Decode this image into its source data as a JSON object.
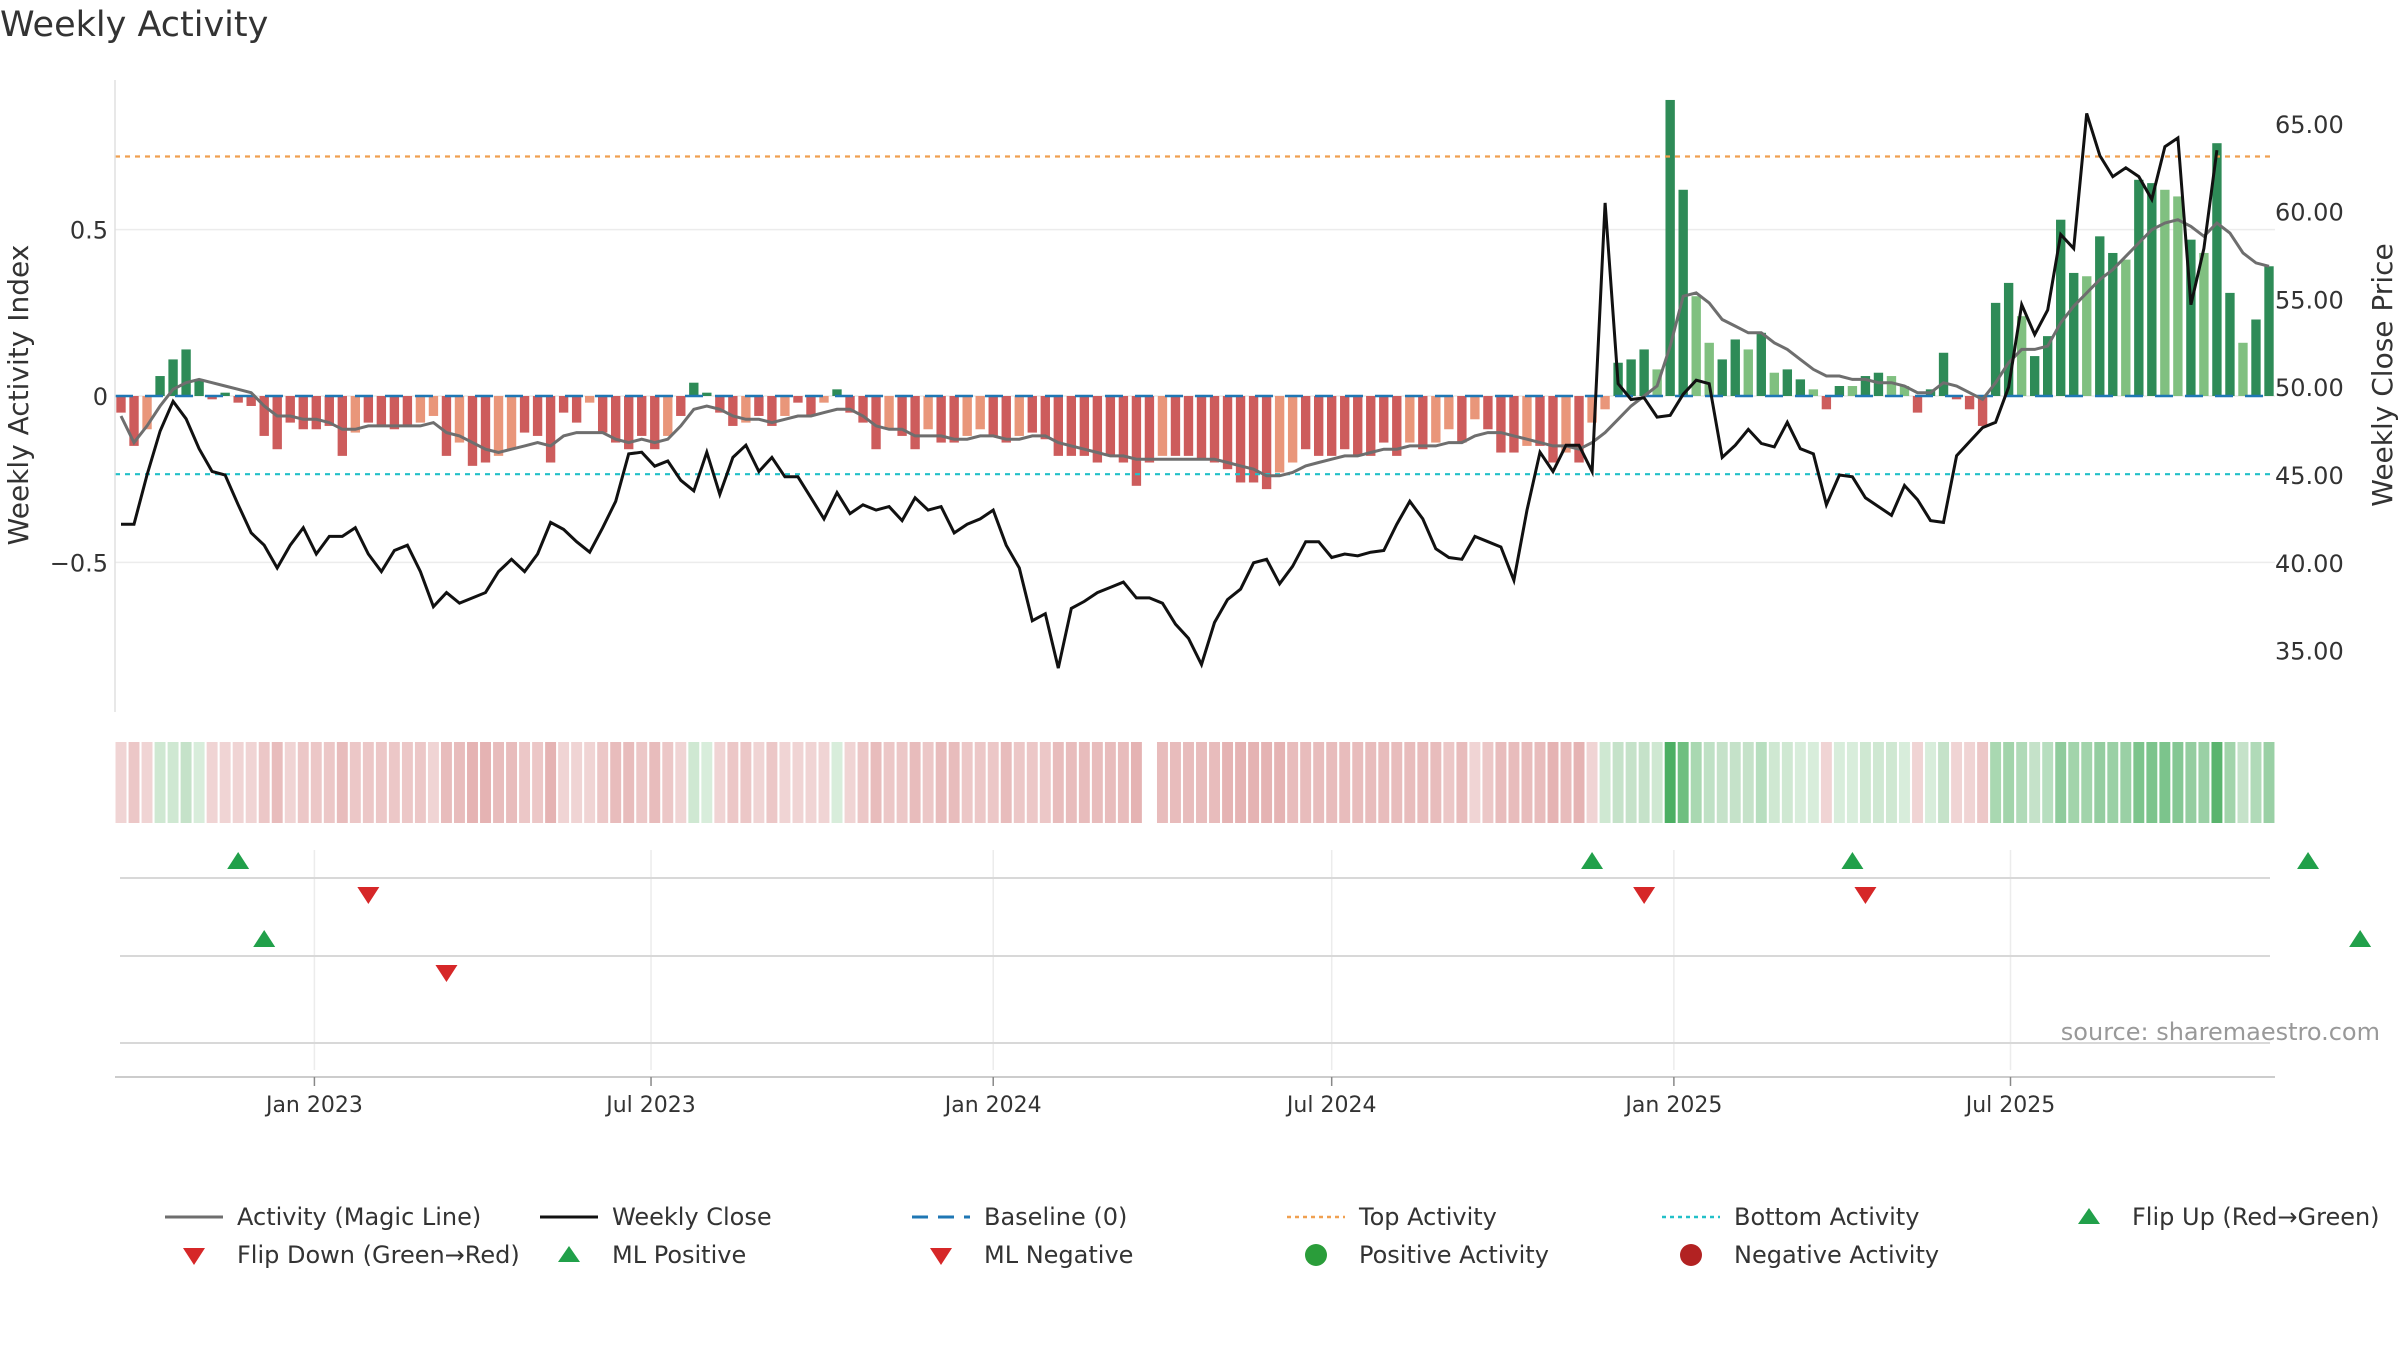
{
  "chart_data": {
    "type": "bar",
    "title": "Weekly Activity",
    "ylabel_left": "Weekly Activity Index",
    "ylabel_right": "Weekly Close Price",
    "source": "source: sharemaestro.com",
    "x_start": "2022-09-19",
    "week_step_days": 7,
    "x_ticks": [
      {
        "date": "2023-01-01",
        "label": "Jan 2023"
      },
      {
        "date": "2023-07-01",
        "label": "Jul 2023"
      },
      {
        "date": "2024-01-01",
        "label": "Jan 2024"
      },
      {
        "date": "2024-07-01",
        "label": "Jul 2024"
      },
      {
        "date": "2025-01-01",
        "label": "Jan 2025"
      },
      {
        "date": "2025-07-01",
        "label": "Jul 2025"
      }
    ],
    "left_ticks": [
      {
        "value": 0.5,
        "label": "0.5"
      },
      {
        "value": 0,
        "label": "0"
      },
      {
        "value": -0.5,
        "label": "−0.5"
      }
    ],
    "right_ticks": [
      {
        "value": 65,
        "label": "65.00"
      },
      {
        "value": 60,
        "label": "60.00"
      },
      {
        "value": 55,
        "label": "55.00"
      },
      {
        "value": 50,
        "label": "50.00"
      },
      {
        "value": 45,
        "label": "45.00"
      },
      {
        "value": 40,
        "label": "40.00"
      },
      {
        "value": 35,
        "label": "35.00"
      }
    ],
    "ylim_left": [
      -0.95,
      0.95
    ],
    "ylim_right": [
      31.5,
      67.5
    ],
    "top_activity": 0.72,
    "bottom_activity": -0.235,
    "baseline": 0,
    "activity": [
      -0.05,
      -0.15,
      -0.1,
      0.06,
      0.11,
      0.14,
      0.05,
      -0.01,
      0.01,
      -0.02,
      -0.03,
      -0.12,
      -0.16,
      -0.08,
      -0.1,
      -0.1,
      -0.09,
      -0.18,
      -0.11,
      -0.08,
      -0.09,
      -0.1,
      -0.09,
      -0.08,
      -0.06,
      -0.18,
      -0.14,
      -0.21,
      -0.2,
      -0.18,
      -0.16,
      -0.11,
      -0.12,
      -0.2,
      -0.05,
      -0.08,
      -0.02,
      -0.11,
      -0.14,
      -0.16,
      -0.12,
      -0.16,
      -0.12,
      -0.06,
      0.04,
      0.01,
      -0.05,
      -0.09,
      -0.08,
      -0.06,
      -0.09,
      -0.06,
      -0.02,
      -0.06,
      -0.02,
      0.02,
      -0.05,
      -0.08,
      -0.16,
      -0.1,
      -0.12,
      -0.16,
      -0.1,
      -0.14,
      -0.14,
      -0.12,
      -0.1,
      -0.12,
      -0.14,
      -0.12,
      -0.11,
      -0.13,
      -0.18,
      -0.18,
      -0.18,
      -0.2,
      -0.18,
      -0.2,
      -0.27,
      -0.2,
      -0.18,
      -0.18,
      -0.18,
      -0.19,
      -0.2,
      -0.22,
      -0.26,
      -0.26,
      -0.28,
      -0.23,
      -0.2,
      -0.16,
      -0.18,
      -0.18,
      -0.16,
      -0.18,
      -0.18,
      -0.14,
      -0.18,
      -0.14,
      -0.16,
      -0.14,
      -0.1,
      -0.14,
      -0.07,
      -0.1,
      -0.17,
      -0.17,
      -0.15,
      -0.15,
      -0.2,
      -0.17,
      -0.2,
      -0.08,
      -0.04,
      0.1,
      0.11,
      0.14,
      0.08,
      0.89,
      0.62,
      0.3,
      0.16,
      0.11,
      0.17,
      0.14,
      0.19,
      0.07,
      0.08,
      0.05,
      0.02,
      -0.04,
      0.03,
      0.03,
      0.06,
      0.07,
      0.06,
      0.03,
      -0.05,
      0.02,
      0.13,
      -0.01,
      -0.04,
      -0.09,
      0.28,
      0.34,
      0.24,
      0.12,
      0.18,
      0.53,
      0.37,
      0.36,
      0.48,
      0.43,
      0.41,
      0.65,
      0.64,
      0.62,
      0.6,
      0.47,
      0.43,
      0.76,
      0.31,
      0.16,
      0.23,
      0.39
    ],
    "magic_line": [
      -0.06,
      -0.14,
      -0.09,
      -0.03,
      0.02,
      0.04,
      0.05,
      0.04,
      0.03,
      0.02,
      0.01,
      -0.03,
      -0.06,
      -0.06,
      -0.07,
      -0.07,
      -0.08,
      -0.1,
      -0.1,
      -0.09,
      -0.09,
      -0.09,
      -0.09,
      -0.09,
      -0.08,
      -0.11,
      -0.12,
      -0.14,
      -0.16,
      -0.17,
      -0.16,
      -0.15,
      -0.14,
      -0.15,
      -0.12,
      -0.11,
      -0.11,
      -0.11,
      -0.13,
      -0.14,
      -0.13,
      -0.14,
      -0.13,
      -0.09,
      -0.04,
      -0.03,
      -0.04,
      -0.06,
      -0.07,
      -0.07,
      -0.08,
      -0.07,
      -0.06,
      -0.06,
      -0.05,
      -0.04,
      -0.04,
      -0.06,
      -0.09,
      -0.1,
      -0.1,
      -0.12,
      -0.12,
      -0.12,
      -0.13,
      -0.13,
      -0.12,
      -0.12,
      -0.13,
      -0.13,
      -0.12,
      -0.12,
      -0.14,
      -0.15,
      -0.16,
      -0.17,
      -0.18,
      -0.18,
      -0.19,
      -0.19,
      -0.19,
      -0.19,
      -0.19,
      -0.19,
      -0.19,
      -0.2,
      -0.21,
      -0.22,
      -0.24,
      -0.24,
      -0.23,
      -0.21,
      -0.2,
      -0.19,
      -0.18,
      -0.18,
      -0.17,
      -0.16,
      -0.16,
      -0.15,
      -0.15,
      -0.15,
      -0.14,
      -0.14,
      -0.12,
      -0.11,
      -0.11,
      -0.12,
      -0.13,
      -0.14,
      -0.15,
      -0.15,
      -0.16,
      -0.14,
      -0.11,
      -0.07,
      -0.03,
      0.0,
      0.03,
      0.15,
      0.3,
      0.31,
      0.28,
      0.23,
      0.21,
      0.19,
      0.19,
      0.16,
      0.14,
      0.11,
      0.08,
      0.06,
      0.06,
      0.05,
      0.05,
      0.04,
      0.04,
      0.03,
      0.01,
      0.01,
      0.04,
      0.03,
      0.01,
      -0.01,
      0.04,
      0.1,
      0.14,
      0.14,
      0.15,
      0.22,
      0.27,
      0.31,
      0.35,
      0.38,
      0.42,
      0.46,
      0.5,
      0.52,
      0.53,
      0.51,
      0.48,
      0.52,
      0.49,
      0.43,
      0.4,
      0.39
    ],
    "weekly_close": [
      42.2,
      42.2,
      45.0,
      47.5,
      49.2,
      48.2,
      46.5,
      45.2,
      45.0,
      43.3,
      41.7,
      41.0,
      39.7,
      41.0,
      42.0,
      40.5,
      41.5,
      41.5,
      42.0,
      40.5,
      39.5,
      40.7,
      41.0,
      39.5,
      37.5,
      38.3,
      37.7,
      38.0,
      38.3,
      39.5,
      40.2,
      39.5,
      40.5,
      42.3,
      41.9,
      41.2,
      40.6,
      42.0,
      43.5,
      46.2,
      46.3,
      45.5,
      45.8,
      44.7,
      44.1,
      46.3,
      43.9,
      46.0,
      46.7,
      45.2,
      46.0,
      44.9,
      44.9,
      43.7,
      42.5,
      44.0,
      42.8,
      43.3,
      43.0,
      43.2,
      42.4,
      43.7,
      43.0,
      43.2,
      41.7,
      42.2,
      42.5,
      43.0,
      41.0,
      39.7,
      36.7,
      37.1,
      34.0,
      37.4,
      37.8,
      38.3,
      38.6,
      38.9,
      38.0,
      38.0,
      37.7,
      36.5,
      35.7,
      34.2,
      36.6,
      37.9,
      38.5,
      40.0,
      40.2,
      38.8,
      39.8,
      41.2,
      41.2,
      40.3,
      40.5,
      40.4,
      40.6,
      40.7,
      42.2,
      43.5,
      42.5,
      40.8,
      40.3,
      40.2,
      41.5,
      41.2,
      40.9,
      39.0,
      43.0,
      46.3,
      45.2,
      46.7,
      46.7,
      45.2,
      60.5,
      50.2,
      49.3,
      49.4,
      48.3,
      48.4,
      49.6,
      50.4,
      50.2,
      46.0,
      46.7,
      47.6,
      46.8,
      46.6,
      48.0,
      46.5,
      46.2,
      43.3,
      45.0,
      44.9,
      43.7,
      43.2,
      42.7,
      44.4,
      43.6,
      42.4,
      42.3,
      46.1,
      46.9,
      47.7,
      48.0,
      50.0,
      54.7,
      53.0,
      54.4,
      58.7,
      57.9,
      65.6,
      63.2,
      62.0,
      62.5,
      62.0,
      60.7,
      63.7,
      64.2,
      54.7,
      57.9,
      63.5
    ],
    "strip_colors": [
      "#f0d4d4",
      "#ecc7c7",
      "#f0d4d4",
      "#cfe8d2",
      "#cfe8d2",
      "#c5e2c9",
      "#d8eddb",
      "#f0d4d4",
      "#f0d4d4",
      "#f0d4d4",
      "#f0d4d4",
      "#ecc7c7",
      "#e8bcbc",
      "#f0d4d4",
      "#ecc7c7",
      "#ecc7c7",
      "#ecc7c7",
      "#e8bcbc",
      "#ecc7c7",
      "#ecc7c7",
      "#ecc7c7",
      "#ecc7c7",
      "#ecc7c7",
      "#ecc7c7",
      "#f0d4d4",
      "#e8bcbc",
      "#e8bcbc",
      "#e5b3b3",
      "#e5b3b3",
      "#e8bcbc",
      "#e8bcbc",
      "#ecc7c7",
      "#ecc7c7",
      "#e5b3b3",
      "#f0d4d4",
      "#f0d4d4",
      "#f0d4d4",
      "#ecc7c7",
      "#e8bcbc",
      "#e8bcbc",
      "#ecc7c7",
      "#e8bcbc",
      "#ecc7c7",
      "#f0d4d4",
      "#cfe8d2",
      "#d8eddb",
      "#f0d4d4",
      "#ecc7c7",
      "#ecc7c7",
      "#f0d4d4",
      "#ecc7c7",
      "#f0d4d4",
      "#f0d4d4",
      "#f0d4d4",
      "#f0d4d4",
      "#d8eddb",
      "#f0d4d4",
      "#ecc7c7",
      "#e8bcbc",
      "#ecc7c7",
      "#ecc7c7",
      "#e8bcbc",
      "#ecc7c7",
      "#e8bcbc",
      "#e8bcbc",
      "#ecc7c7",
      "#ecc7c7",
      "#ecc7c7",
      "#e8bcbc",
      "#ecc7c7",
      "#ecc7c7",
      "#ecc7c7",
      "#e8bcbc",
      "#e8bcbc",
      "#e8bcbc",
      "#e8bcbc",
      "#e8bcbc",
      "#e8bcbc",
      "#e5b3b3",
      "#ffffff",
      "#e8bcbc",
      "#e8bcbc",
      "#e8bcbc",
      "#e8bcbc",
      "#e8bcbc",
      "#e5b3b3",
      "#e5b3b3",
      "#e5b3b3",
      "#e5b3b3",
      "#e5b3b3",
      "#e8bcbc",
      "#e8bcbc",
      "#e8bcbc",
      "#e8bcbc",
      "#e8bcbc",
      "#e8bcbc",
      "#e8bcbc",
      "#e8bcbc",
      "#e8bcbc",
      "#e8bcbc",
      "#e8bcbc",
      "#e8bcbc",
      "#ecc7c7",
      "#e8bcbc",
      "#f0d4d4",
      "#ecc7c7",
      "#e8bcbc",
      "#e8bcbc",
      "#e8bcbc",
      "#e8bcbc",
      "#e5b3b3",
      "#e8bcbc",
      "#e5b3b3",
      "#f0d4d4",
      "#cfe8d2",
      "#c5e2c9",
      "#c5e2c9",
      "#c5e2c9",
      "#cfe8d2",
      "#4caf63",
      "#6fbf80",
      "#a9d8b1",
      "#bfe1c5",
      "#c5e2c9",
      "#b7deb f",
      "#c5e2c9",
      "#b7debf",
      "#cfe8d2",
      "#cfe8d2",
      "#d8eddb",
      "#d8eddb",
      "#f0d4d4",
      "#d8eddb",
      "#d8eddb",
      "#cfe8d2",
      "#cfe8d2",
      "#cfe8d2",
      "#d8eddb",
      "#f0d4d4",
      "#d8eddb",
      "#c5e2c9",
      "#f0d4d4",
      "#f0d4d4",
      "#ecc7c7",
      "#a9d8b1",
      "#a2d4ab",
      "#b0dab8",
      "#c5e2c9",
      "#b7debf",
      "#8fcb9c",
      "#a2d4ab",
      "#a2d4ab",
      "#94cda0",
      "#9ad0a5",
      "#9ad0a5",
      "#7cc48c",
      "#7cc48c",
      "#7cc48c",
      "#84c793",
      "#94cda0",
      "#9ad0a5",
      "#5ab46e",
      "#a2d4ab",
      "#c5e2c9",
      "#b0dab8",
      "#9ad0a5"
    ],
    "row1_up": [
      9,
      113,
      133,
      168,
      201,
      216,
      226
    ],
    "row1_down": [
      19,
      117,
      134,
      199,
      214,
      220
    ],
    "row2_up": [
      11,
      172,
      226
    ],
    "row2_down": [
      25,
      224
    ],
    "legend": [
      {
        "label": "Activity (Magic Line)",
        "kind": "line",
        "color": "#6e6e6e"
      },
      {
        "label": "Weekly Close",
        "kind": "line",
        "color": "#111111"
      },
      {
        "label": "Baseline (0)",
        "kind": "dash",
        "color": "#1f77b4"
      },
      {
        "label": "Top Activity",
        "kind": "dot",
        "color": "#f0a050"
      },
      {
        "label": "Bottom Activity",
        "kind": "dot",
        "color": "#22c0c8"
      },
      {
        "label": "Flip Up (Red→Green)",
        "kind": "tri-up",
        "color": "#21a04a"
      },
      {
        "label": "Flip Down (Green→Red)",
        "kind": "tri-down",
        "color": "#d62728"
      },
      {
        "label": "ML Positive",
        "kind": "tri-up",
        "color": "#21a04a"
      },
      {
        "label": "ML Negative",
        "kind": "tri-down",
        "color": "#d62728"
      },
      {
        "label": "Positive Activity",
        "kind": "circle",
        "color": "#2a9d3a"
      },
      {
        "label": "Negative Activity",
        "kind": "circle",
        "color": "#b22222"
      }
    ],
    "colors": {
      "pos_strong": "#2e8b57",
      "pos_light": "#80c080",
      "neg_strong": "#cd5c5c",
      "neg_light": "#e9967a",
      "magic_line": "#6e6e6e",
      "close_line": "#111111",
      "baseline": "#1f77b4",
      "top_line": "#f0a050",
      "bottom_line": "#22c0c8",
      "up_marker": "#21a04a",
      "down_marker": "#d62728"
    }
  }
}
